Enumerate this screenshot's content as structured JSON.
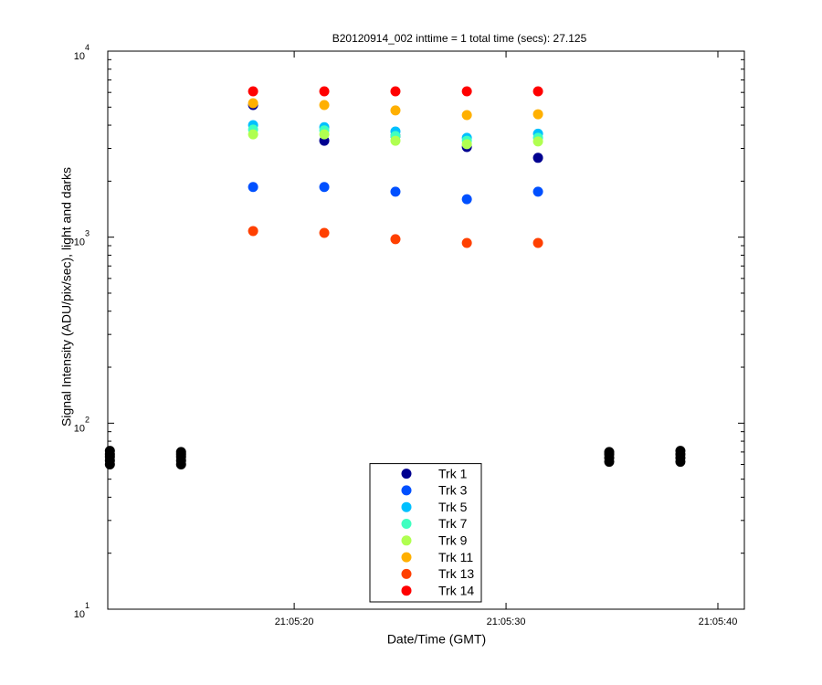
{
  "chart_data": {
    "type": "scatter",
    "title": "B20120914_002 inttime = 1 total time (secs): 27.125",
    "x_label": "Date/Time (GMT)",
    "y_label": "Signal Intensity (ADU/pix/sec), light and darks",
    "log_y": true,
    "xlim": [
      11.2,
      41.25
    ],
    "ylim": [
      10,
      10000
    ],
    "xticks": [
      {
        "value": 20,
        "label": "21:05:20"
      },
      {
        "value": 30,
        "label": "21:05:30"
      },
      {
        "value": 40,
        "label": "21:05:40"
      }
    ],
    "yticks": [
      {
        "value": 10,
        "label": "10",
        "exponent": "1"
      },
      {
        "value": 100,
        "label": "10",
        "exponent": "2"
      },
      {
        "value": 1000,
        "label": "10",
        "exponent": "3"
      },
      {
        "value": 10000,
        "label": "10",
        "exponent": "4"
      }
    ],
    "legend_position": "bottom",
    "series": [
      {
        "name": "Trk 1",
        "color": "#000090",
        "x": [
          18.06,
          21.42,
          24.78,
          28.15,
          31.51
        ],
        "values": [
          5130,
          3300,
          3500,
          3050,
          2670
        ]
      },
      {
        "name": "Trk 3",
        "color": "#0050ff",
        "x": [
          18.06,
          21.42,
          24.78,
          28.15,
          31.51
        ],
        "values": [
          1860,
          1860,
          1755,
          1600,
          1755
        ]
      },
      {
        "name": "Trk 5",
        "color": "#00c0ff",
        "x": [
          18.06,
          21.42,
          24.78,
          28.15,
          31.51
        ],
        "values": [
          4000,
          3900,
          3700,
          3420,
          3600
        ]
      },
      {
        "name": "Trk 7",
        "color": "#40ffc0",
        "x": [
          18.06,
          21.42,
          24.78,
          28.15,
          31.51
        ],
        "values": [
          3790,
          3750,
          3500,
          3300,
          3420
        ]
      },
      {
        "name": "Trk 9",
        "color": "#b0ff50",
        "x": [
          18.06,
          21.42,
          24.78,
          28.15,
          31.51
        ],
        "values": [
          3570,
          3570,
          3300,
          3160,
          3270
        ]
      },
      {
        "name": "Trk 11",
        "color": "#ffb000",
        "x": [
          18.06,
          21.42,
          24.78,
          28.15,
          31.51
        ],
        "values": [
          5250,
          5130,
          4800,
          4530,
          4580
        ]
      },
      {
        "name": "Trk 13",
        "color": "#ff4000",
        "x": [
          18.06,
          21.42,
          24.78,
          28.15,
          31.51
        ],
        "values": [
          1079,
          1054,
          975,
          931,
          931
        ]
      },
      {
        "name": "Trk 14",
        "color": "#ff0000",
        "x": [
          18.06,
          21.42,
          24.78,
          28.15,
          31.51
        ],
        "values": [
          6080,
          6080,
          6080,
          6080,
          6080
        ]
      }
    ],
    "darks": {
      "color": "#000000",
      "x": [
        11.3,
        11.3,
        11.3,
        11.3,
        11.3,
        14.66,
        14.66,
        14.66,
        14.66,
        14.66,
        34.87,
        34.87,
        34.87,
        34.87,
        38.23,
        38.23,
        38.23,
        38.23
      ],
      "values": [
        71,
        68,
        66,
        63,
        60,
        70,
        68,
        66,
        63,
        60,
        70,
        68,
        65,
        62,
        71,
        68,
        65,
        62
      ]
    }
  }
}
